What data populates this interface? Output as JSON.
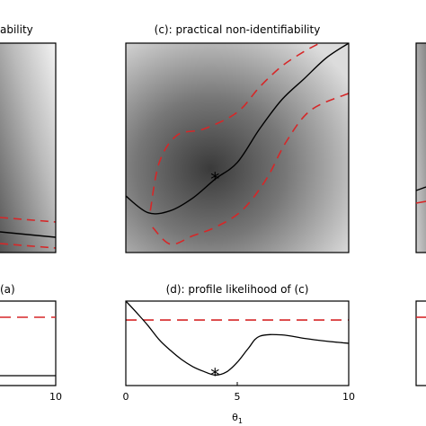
{
  "chart_data": [
    {
      "id": "panel-a-fragment",
      "type": "heatmap",
      "title": "ability",
      "xlabel": "",
      "ylabel": "",
      "contour_color": "#d62728",
      "profile_color": "#000000"
    },
    {
      "id": "panel-c",
      "type": "heatmap",
      "title": "(c): practical non-identifiability",
      "xlabel": "",
      "ylabel": "",
      "xlim": [
        0,
        10
      ],
      "ylim": [
        0,
        10
      ],
      "estimate_marker": "*",
      "estimate": {
        "x": 4,
        "y": 3.5
      },
      "profile_path": {
        "x": [
          0,
          1,
          2,
          3,
          4,
          5,
          6,
          7,
          8,
          9,
          10
        ],
        "y": [
          2.7,
          1.9,
          2.0,
          2.6,
          3.5,
          4.3,
          5.9,
          7.3,
          8.3,
          9.3,
          10.0
        ]
      },
      "confidence_upper": {
        "x": [
          1.1,
          1.5,
          2.3,
          3.5,
          5.0,
          6.0,
          7.0,
          8.0,
          8.7
        ],
        "y": [
          2.0,
          4.3,
          5.6,
          5.9,
          6.7,
          7.9,
          8.9,
          9.6,
          10.0
        ]
      },
      "confidence_lower": {
        "x": [
          1.2,
          2.0,
          3.0,
          4.0,
          5.2,
          6.3,
          7.2,
          8.3,
          10.0
        ],
        "y": [
          1.2,
          0.4,
          0.8,
          1.2,
          2.0,
          3.5,
          5.3,
          6.8,
          7.6
        ]
      },
      "contour_color": "#d62728",
      "profile_color": "#000000"
    },
    {
      "id": "panel-a-profile-fragment",
      "type": "line",
      "title": "(a)",
      "xlabel": "",
      "ylabel": "",
      "xticks": [
        "10"
      ],
      "threshold_color": "#d62728"
    },
    {
      "id": "panel-d",
      "type": "line",
      "title": "(d): profile likelihood of (c)",
      "xlabel": "θ",
      "xlabel_subscript": "1",
      "ylabel": "",
      "xlim": [
        0,
        10
      ],
      "xticks": [
        "0",
        "5",
        "10"
      ],
      "threshold_color": "#d62728",
      "series": [
        {
          "x": [
            0,
            0.5,
            1,
            1.5,
            2,
            2.5,
            3,
            3.5,
            4,
            4.5,
            5,
            5.5,
            6,
            7,
            8,
            9,
            10
          ],
          "y": [
            1.05,
            0.88,
            0.7,
            0.5,
            0.35,
            0.22,
            0.12,
            0.05,
            0.0,
            0.04,
            0.18,
            0.38,
            0.55,
            0.57,
            0.52,
            0.48,
            0.45
          ]
        }
      ],
      "threshold": 0.78,
      "estimate": {
        "x": 4,
        "y": 0.0
      },
      "ylim": [
        -0.15,
        1.05
      ]
    },
    {
      "id": "panel-right-fragment",
      "type": "line",
      "title": ""
    }
  ]
}
